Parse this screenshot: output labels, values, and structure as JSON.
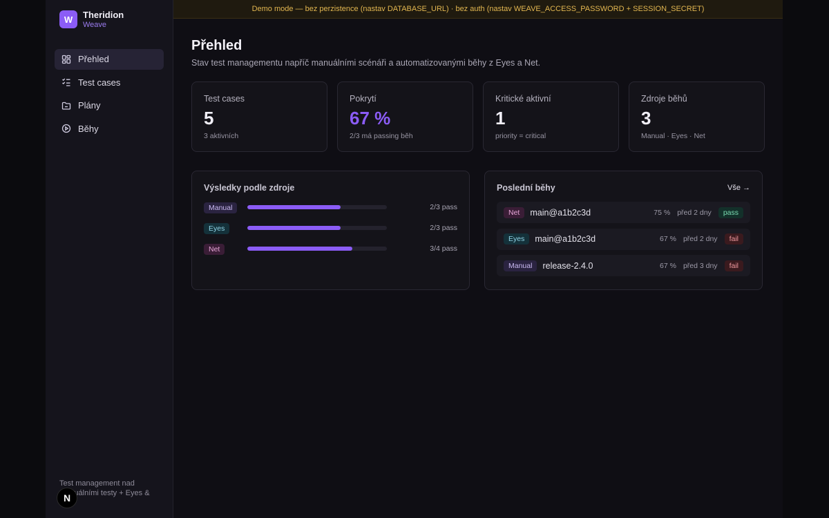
{
  "brand": {
    "logo_letter": "W",
    "name": "Theridion",
    "sub": "Weave"
  },
  "nav": [
    {
      "label": "Přehled",
      "icon": "dashboard-icon",
      "active": true
    },
    {
      "label": "Test cases",
      "icon": "checklist-icon",
      "active": false
    },
    {
      "label": "Plány",
      "icon": "folder-icon",
      "active": false
    },
    {
      "label": "Běhy",
      "icon": "play-circle-icon",
      "active": false
    }
  ],
  "sidebar_footer": "Test management nad manuálními testy + Eyes & Net",
  "n_badge": "N",
  "banner": "Demo mode — bez perzistence (nastav DATABASE_URL) · bez auth (nastav WEAVE_ACCESS_PASSWORD + SESSION_SECRET)",
  "page": {
    "title": "Přehled",
    "subtitle": "Stav test managementu napříč manuálními scénáři a automatizovanými běhy z Eyes a Net."
  },
  "stats": [
    {
      "label": "Test cases",
      "value": "5",
      "note": "3 aktivních"
    },
    {
      "label": "Pokrytí",
      "value": "67 %",
      "note": "2/3 má passing běh"
    },
    {
      "label": "Kritické aktivní",
      "value": "1",
      "note": "priority = critical"
    },
    {
      "label": "Zdroje běhů",
      "value": "3",
      "note": "Manual · Eyes · Net"
    }
  ],
  "sources_panel": {
    "title": "Výsledky podle zdroje",
    "rows": [
      {
        "source": "Manual",
        "pass_text": "2/3 pass",
        "fraction": 0.667
      },
      {
        "source": "Eyes",
        "pass_text": "2/3 pass",
        "fraction": 0.667
      },
      {
        "source": "Net",
        "pass_text": "3/4 pass",
        "fraction": 0.75
      }
    ]
  },
  "runs_panel": {
    "title": "Poslední běhy",
    "link": "Vše →",
    "rows": [
      {
        "source": "Net",
        "branch": "main@a1b2c3d",
        "percent": "75 %",
        "when": "před 2 dny",
        "status": "pass"
      },
      {
        "source": "Eyes",
        "branch": "main@a1b2c3d",
        "percent": "67 %",
        "when": "před 2 dny",
        "status": "fail"
      },
      {
        "source": "Manual",
        "branch": "release-2.4.0",
        "percent": "67 %",
        "when": "před 3 dny",
        "status": "fail"
      }
    ]
  },
  "colors": {
    "accent": "#8b5cf6",
    "pass": "#7ad9b0",
    "fail": "#f29aa0",
    "banner": "#e2b650"
  }
}
